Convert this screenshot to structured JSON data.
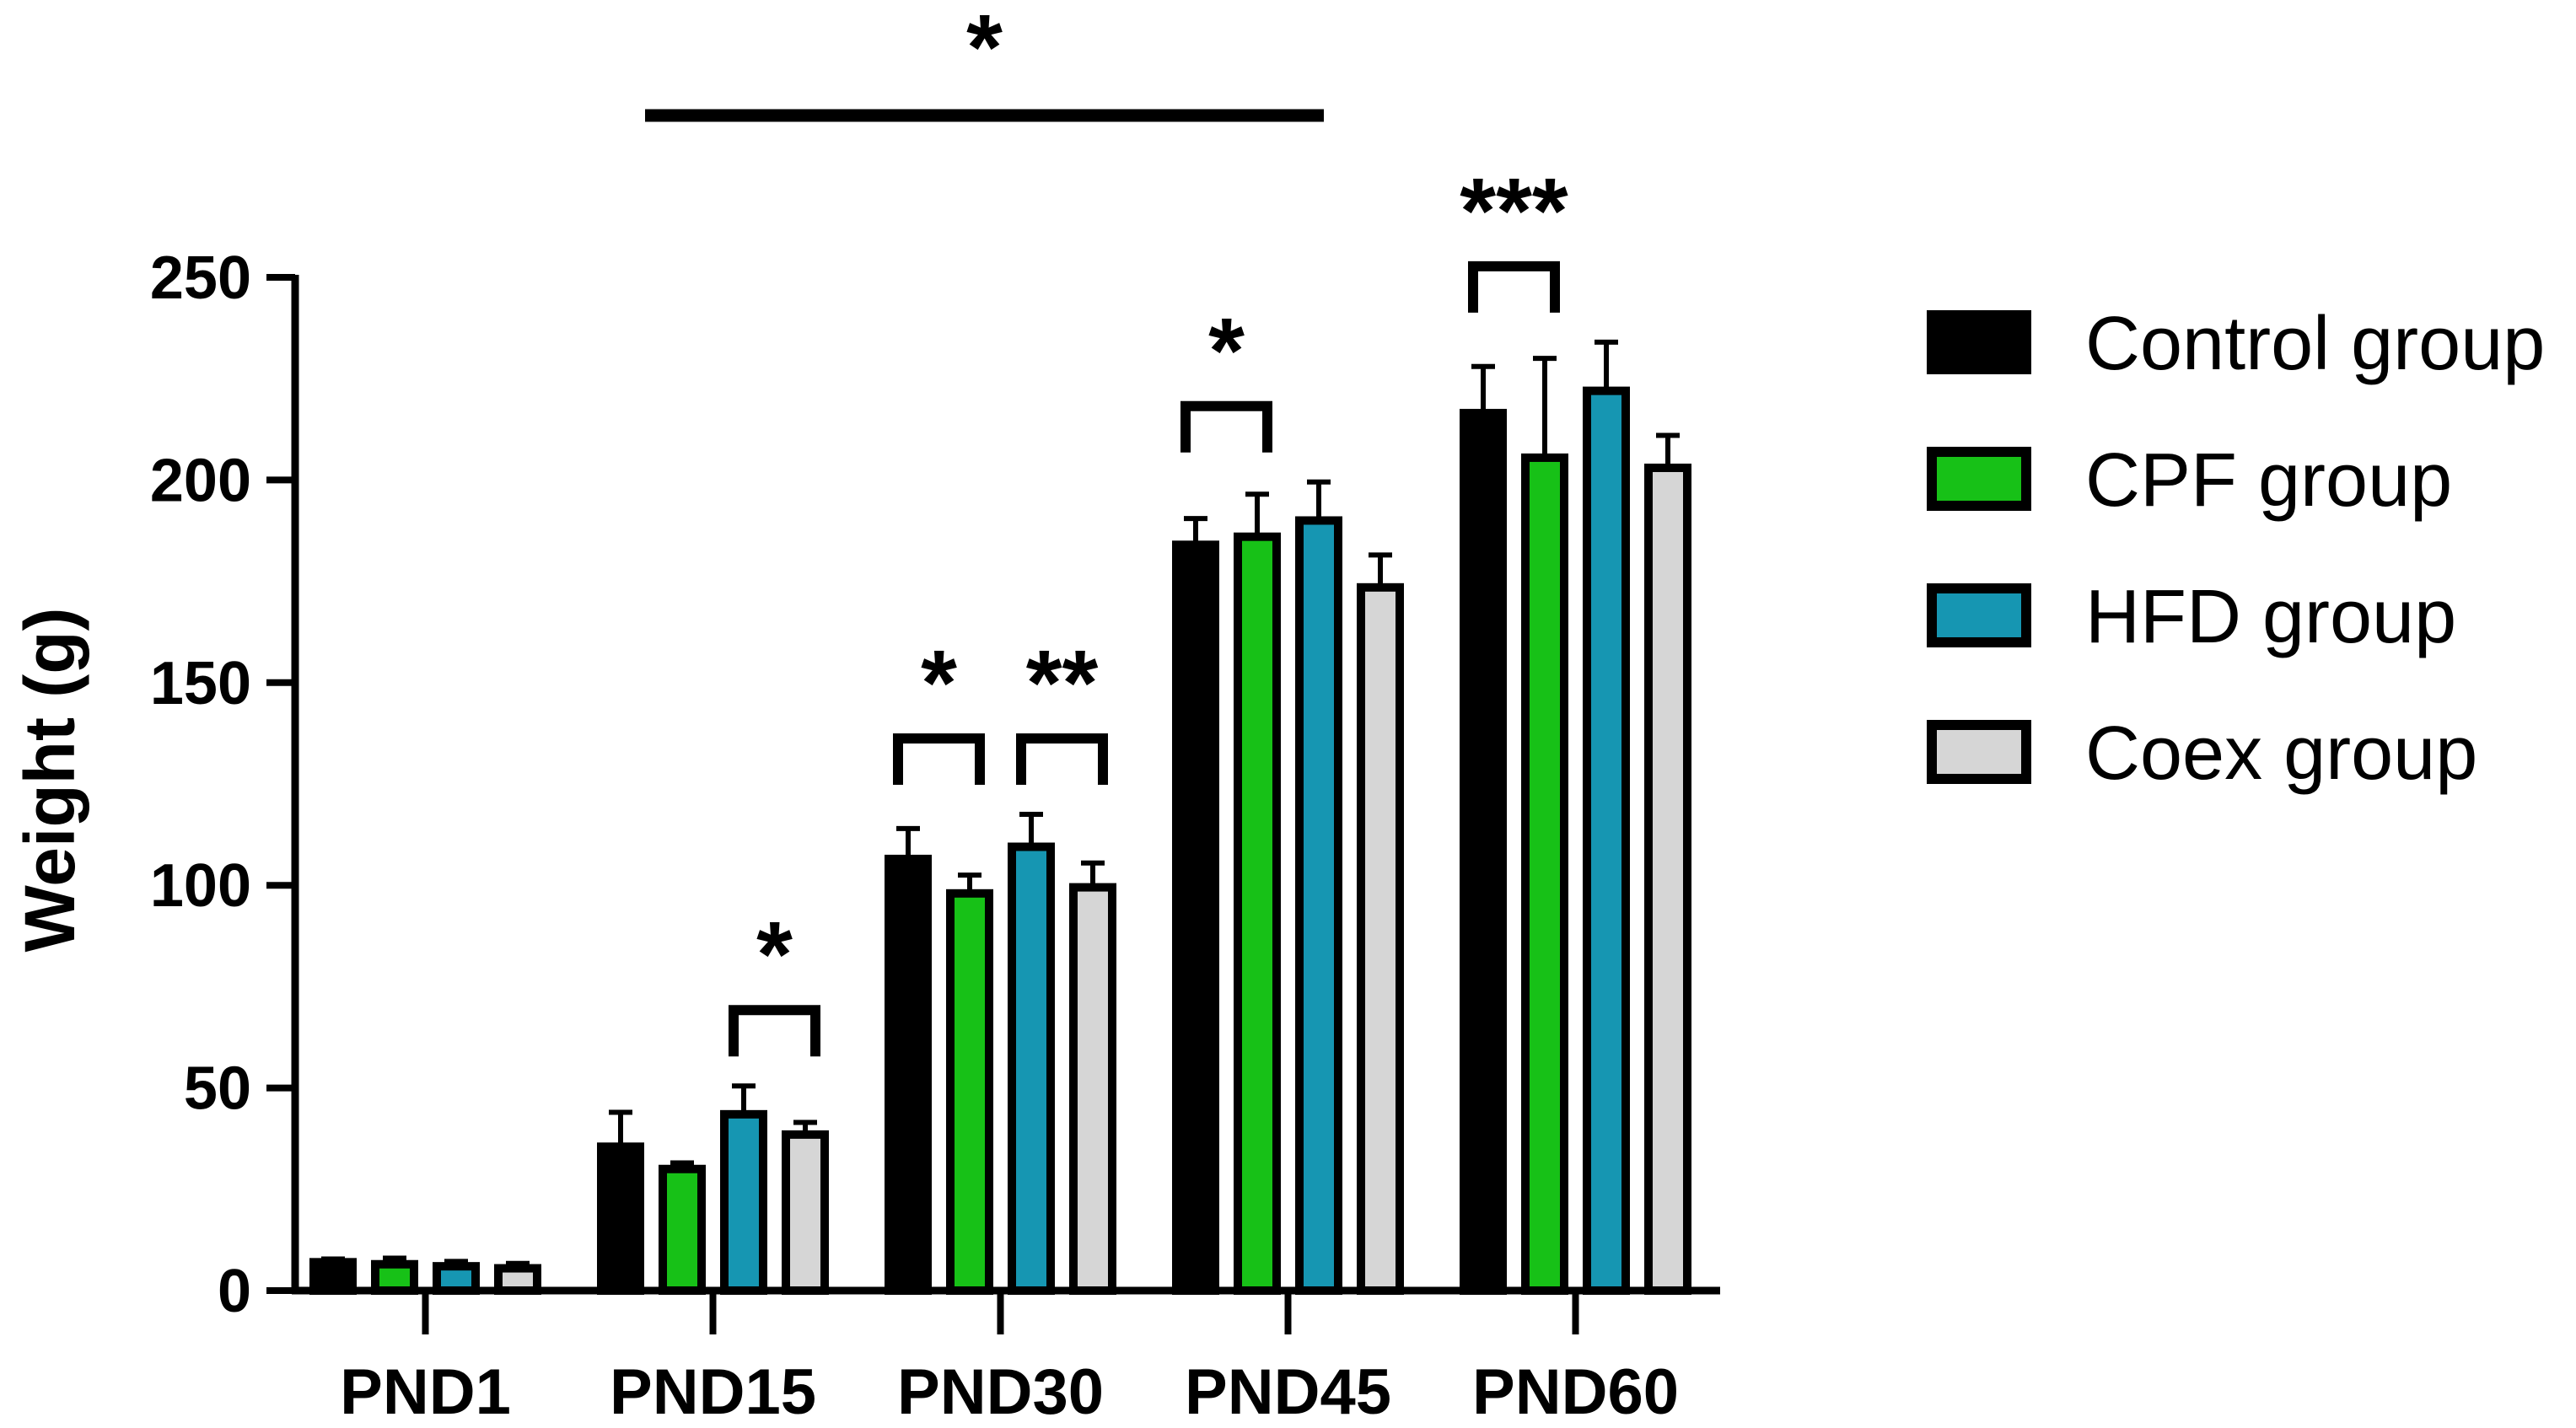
{
  "chart_data": {
    "type": "bar",
    "ylabel": "Weight (g)",
    "xlabel": "",
    "ylim": [
      0,
      250
    ],
    "yticks": [
      0,
      50,
      100,
      150,
      200,
      250
    ],
    "categories": [
      "PND1",
      "PND15",
      "PND30",
      "PND45",
      "PND60"
    ],
    "legend_position": "right",
    "grid": false,
    "series": [
      {
        "name": "Control group",
        "color": "#000000",
        "values": [
          7,
          35.5,
          106.5,
          184,
          216.5
        ],
        "errors": [
          0.8,
          8.5,
          7.5,
          6.5,
          11.5
        ]
      },
      {
        "name": "CPF group",
        "color": "#17c117",
        "values": [
          6.5,
          30,
          98,
          186,
          205.5
        ],
        "errors": [
          1.5,
          1.5,
          4.5,
          10.5,
          24.5
        ]
      },
      {
        "name": "HFD group",
        "color": "#1696b2",
        "values": [
          6,
          43.5,
          109.5,
          190,
          222
        ],
        "errors": [
          1.2,
          7,
          8,
          9.5,
          12
        ]
      },
      {
        "name": "Coex group",
        "color": "#d6d6d6",
        "values": [
          5.5,
          38.5,
          99.5,
          173.5,
          203
        ],
        "errors": [
          1.2,
          3,
          6,
          8,
          8
        ]
      }
    ],
    "annotations": [
      {
        "label": "*",
        "type": "line",
        "from_category": 1,
        "to_category": 3
      },
      {
        "label": "*",
        "type": "bracket",
        "category": 1,
        "from_series": 2,
        "to_series": 3
      },
      {
        "label": "*",
        "type": "bracket",
        "category": 2,
        "from_series": 0,
        "to_series": 1
      },
      {
        "label": "**",
        "type": "bracket",
        "category": 2,
        "from_series": 2,
        "to_series": 3
      },
      {
        "label": "*",
        "type": "bracket",
        "category": 3,
        "from_series": 0,
        "to_series": 1
      },
      {
        "label": "***",
        "type": "bracket",
        "category": 4,
        "from_series": 0,
        "to_series": 1
      }
    ]
  }
}
